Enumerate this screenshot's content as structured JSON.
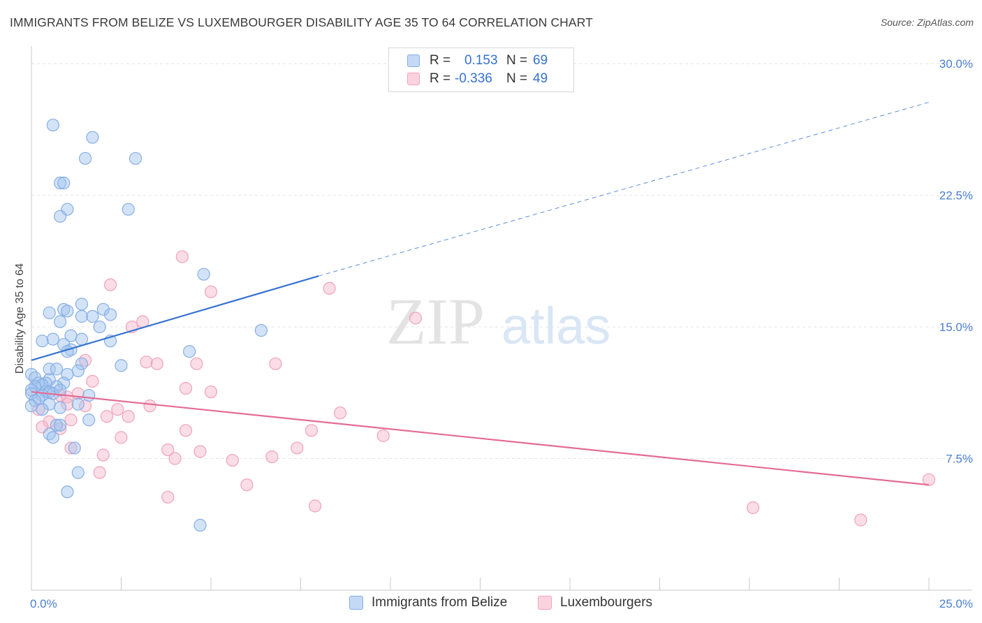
{
  "title": "IMMIGRANTS FROM BELIZE VS LUXEMBOURGER DISABILITY AGE 35 TO 64 CORRELATION CHART",
  "source": "Source: ZipAtlas.com",
  "watermark": {
    "zip": "ZIP",
    "atlas": "atlas"
  },
  "legend": {
    "r_label": "R =",
    "n_label": "N =",
    "rows": [
      {
        "r": "0.153",
        "n": "69",
        "color": "#9dc1ee"
      },
      {
        "r": "-0.336",
        "n": "49",
        "color": "#f5b3c8"
      }
    ]
  },
  "chart_data": {
    "type": "scatter",
    "title": "IMMIGRANTS FROM BELIZE VS LUXEMBOURGER DISABILITY AGE 35 TO 64 CORRELATION CHART",
    "xlabel": "",
    "ylabel": "Disability Age 35 to 64",
    "xlim": [
      0,
      25
    ],
    "ylim": [
      0,
      31
    ],
    "x_tick_labels": [
      "0.0%",
      "25.0%"
    ],
    "y_ticks": [
      7.5,
      15.0,
      22.5,
      30.0
    ],
    "y_tick_labels": [
      "7.5%",
      "15.0%",
      "22.5%",
      "30.0%"
    ],
    "grid": "horizontal dashed",
    "legend_position": "top-center",
    "series": [
      {
        "name": "Immigrants from Belize",
        "color": "#3572d0",
        "fill": "#9dc1ee",
        "R": 0.153,
        "N": 69,
        "trend": {
          "x": [
            0,
            8
          ],
          "y": [
            13.1,
            17.9
          ],
          "dashed_to": [
            25,
            27.8
          ]
        },
        "points": [
          [
            0.6,
            26.5
          ],
          [
            1.7,
            25.8
          ],
          [
            1.5,
            24.6
          ],
          [
            2.9,
            24.6
          ],
          [
            0.8,
            23.2
          ],
          [
            0.9,
            23.2
          ],
          [
            1.0,
            21.7
          ],
          [
            2.7,
            21.7
          ],
          [
            0.8,
            21.3
          ],
          [
            4.8,
            18.0
          ],
          [
            1.4,
            16.3
          ],
          [
            2.0,
            16.0
          ],
          [
            0.9,
            16.0
          ],
          [
            1.0,
            15.9
          ],
          [
            0.5,
            15.8
          ],
          [
            1.4,
            15.6
          ],
          [
            1.7,
            15.6
          ],
          [
            2.2,
            15.7
          ],
          [
            0.8,
            15.3
          ],
          [
            1.9,
            15.0
          ],
          [
            6.4,
            14.8
          ],
          [
            1.1,
            14.5
          ],
          [
            0.6,
            14.3
          ],
          [
            1.4,
            14.3
          ],
          [
            0.3,
            14.2
          ],
          [
            2.2,
            14.2
          ],
          [
            0.9,
            14.0
          ],
          [
            1.1,
            13.7
          ],
          [
            1.0,
            13.6
          ],
          [
            4.4,
            13.6
          ],
          [
            1.4,
            12.9
          ],
          [
            2.5,
            12.8
          ],
          [
            0.5,
            12.6
          ],
          [
            0.7,
            12.6
          ],
          [
            1.3,
            12.5
          ],
          [
            1.0,
            12.3
          ],
          [
            0.0,
            12.3
          ],
          [
            0.1,
            12.1
          ],
          [
            0.5,
            12.0
          ],
          [
            0.4,
            11.8
          ],
          [
            0.2,
            11.8
          ],
          [
            0.3,
            11.7
          ],
          [
            0.1,
            11.6
          ],
          [
            0.9,
            11.8
          ],
          [
            0.7,
            11.6
          ],
          [
            0.0,
            11.4
          ],
          [
            0.4,
            11.3
          ],
          [
            0.5,
            11.3
          ],
          [
            0.0,
            11.2
          ],
          [
            0.3,
            11.1
          ],
          [
            0.6,
            11.2
          ],
          [
            0.8,
            11.4
          ],
          [
            1.6,
            11.1
          ],
          [
            0.2,
            10.9
          ],
          [
            0.1,
            10.8
          ],
          [
            0.5,
            10.6
          ],
          [
            1.3,
            10.6
          ],
          [
            0.3,
            10.3
          ],
          [
            0.8,
            10.4
          ],
          [
            0.0,
            10.5
          ],
          [
            1.6,
            9.7
          ],
          [
            0.7,
            9.4
          ],
          [
            0.8,
            9.4
          ],
          [
            0.5,
            8.9
          ],
          [
            0.6,
            8.7
          ],
          [
            1.2,
            8.1
          ],
          [
            1.3,
            6.7
          ],
          [
            1.0,
            5.6
          ],
          [
            4.7,
            3.7
          ]
        ]
      },
      {
        "name": "Luxembourgers",
        "color": "#e46b96",
        "fill": "#f5b3c8",
        "R": -0.336,
        "N": 49,
        "trend": {
          "x": [
            0,
            25
          ],
          "y": [
            11.3,
            6.0
          ]
        },
        "points": [
          [
            4.2,
            19.0
          ],
          [
            2.2,
            17.4
          ],
          [
            8.3,
            17.2
          ],
          [
            5.0,
            17.0
          ],
          [
            10.7,
            15.5
          ],
          [
            3.1,
            15.3
          ],
          [
            2.8,
            15.0
          ],
          [
            1.5,
            13.1
          ],
          [
            3.2,
            13.0
          ],
          [
            3.5,
            12.9
          ],
          [
            4.6,
            12.9
          ],
          [
            6.8,
            12.9
          ],
          [
            1.7,
            11.9
          ],
          [
            4.3,
            11.5
          ],
          [
            5.0,
            11.3
          ],
          [
            1.3,
            11.2
          ],
          [
            0.8,
            11.1
          ],
          [
            1.0,
            11.0
          ],
          [
            1.0,
            10.6
          ],
          [
            1.5,
            10.5
          ],
          [
            3.3,
            10.5
          ],
          [
            2.4,
            10.3
          ],
          [
            0.2,
            10.3
          ],
          [
            8.6,
            10.1
          ],
          [
            2.1,
            9.9
          ],
          [
            2.7,
            9.9
          ],
          [
            0.5,
            9.6
          ],
          [
            1.1,
            9.7
          ],
          [
            0.3,
            9.3
          ],
          [
            0.8,
            9.2
          ],
          [
            4.3,
            9.1
          ],
          [
            7.8,
            9.1
          ],
          [
            9.8,
            8.8
          ],
          [
            2.5,
            8.7
          ],
          [
            1.1,
            8.1
          ],
          [
            7.4,
            8.1
          ],
          [
            3.8,
            8.0
          ],
          [
            4.7,
            7.9
          ],
          [
            2.0,
            7.7
          ],
          [
            6.7,
            7.6
          ],
          [
            4.0,
            7.5
          ],
          [
            5.6,
            7.4
          ],
          [
            1.9,
            6.7
          ],
          [
            6.0,
            6.0
          ],
          [
            25.0,
            6.3
          ],
          [
            3.8,
            5.3
          ],
          [
            7.9,
            4.8
          ],
          [
            20.1,
            4.7
          ],
          [
            23.1,
            4.0
          ]
        ]
      }
    ]
  }
}
